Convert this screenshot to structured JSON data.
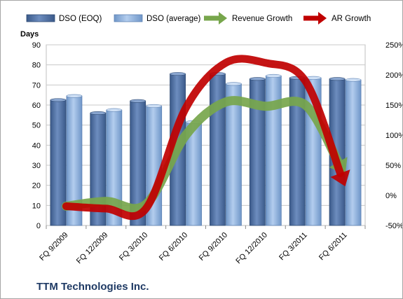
{
  "chart_data": {
    "type": "bar",
    "title": "",
    "company": "TTM Technologies Inc.",
    "ylabel": "Days",
    "ylim": [
      0,
      90
    ],
    "y_ticks": [
      "0",
      "10",
      "20",
      "30",
      "40",
      "50",
      "60",
      "70",
      "80",
      "90"
    ],
    "y2lim": [
      -50,
      250
    ],
    "y2_ticks": [
      "-50%",
      "0%",
      "50%",
      "100%",
      "150%",
      "200%",
      "250%"
    ],
    "categories": [
      "FQ 9/2009",
      "FQ 12/2009",
      "FQ 3/2010",
      "FQ 6/2010",
      "FQ 9/2010",
      "FQ 12/2010",
      "FQ 3/2011",
      "FQ 6/2011"
    ],
    "series": [
      {
        "name": "DSO (EOQ)",
        "kind": "bar",
        "color": "#4f6f9f",
        "values": [
          62.5,
          56,
          62,
          75.5,
          75.5,
          73,
          73.5,
          73
        ]
      },
      {
        "name": "DSO (average)",
        "kind": "bar",
        "color": "#8eb4e3",
        "values": [
          64.5,
          57.5,
          59.5,
          51.5,
          70.5,
          74.5,
          73.5,
          72.5
        ]
      },
      {
        "name": "Revenue Growth",
        "kind": "arrow",
        "axis": "secondary",
        "color": "#77a64c",
        "values": [
          -18,
          -10,
          -15,
          100,
          155,
          148,
          150,
          35
        ]
      },
      {
        "name": "AR Growth",
        "kind": "arrow",
        "axis": "secondary",
        "color": "#c00000",
        "values": [
          -18,
          -22,
          -22,
          145,
          220,
          220,
          190,
          15
        ]
      }
    ],
    "grid": true,
    "legend_position": "top"
  }
}
